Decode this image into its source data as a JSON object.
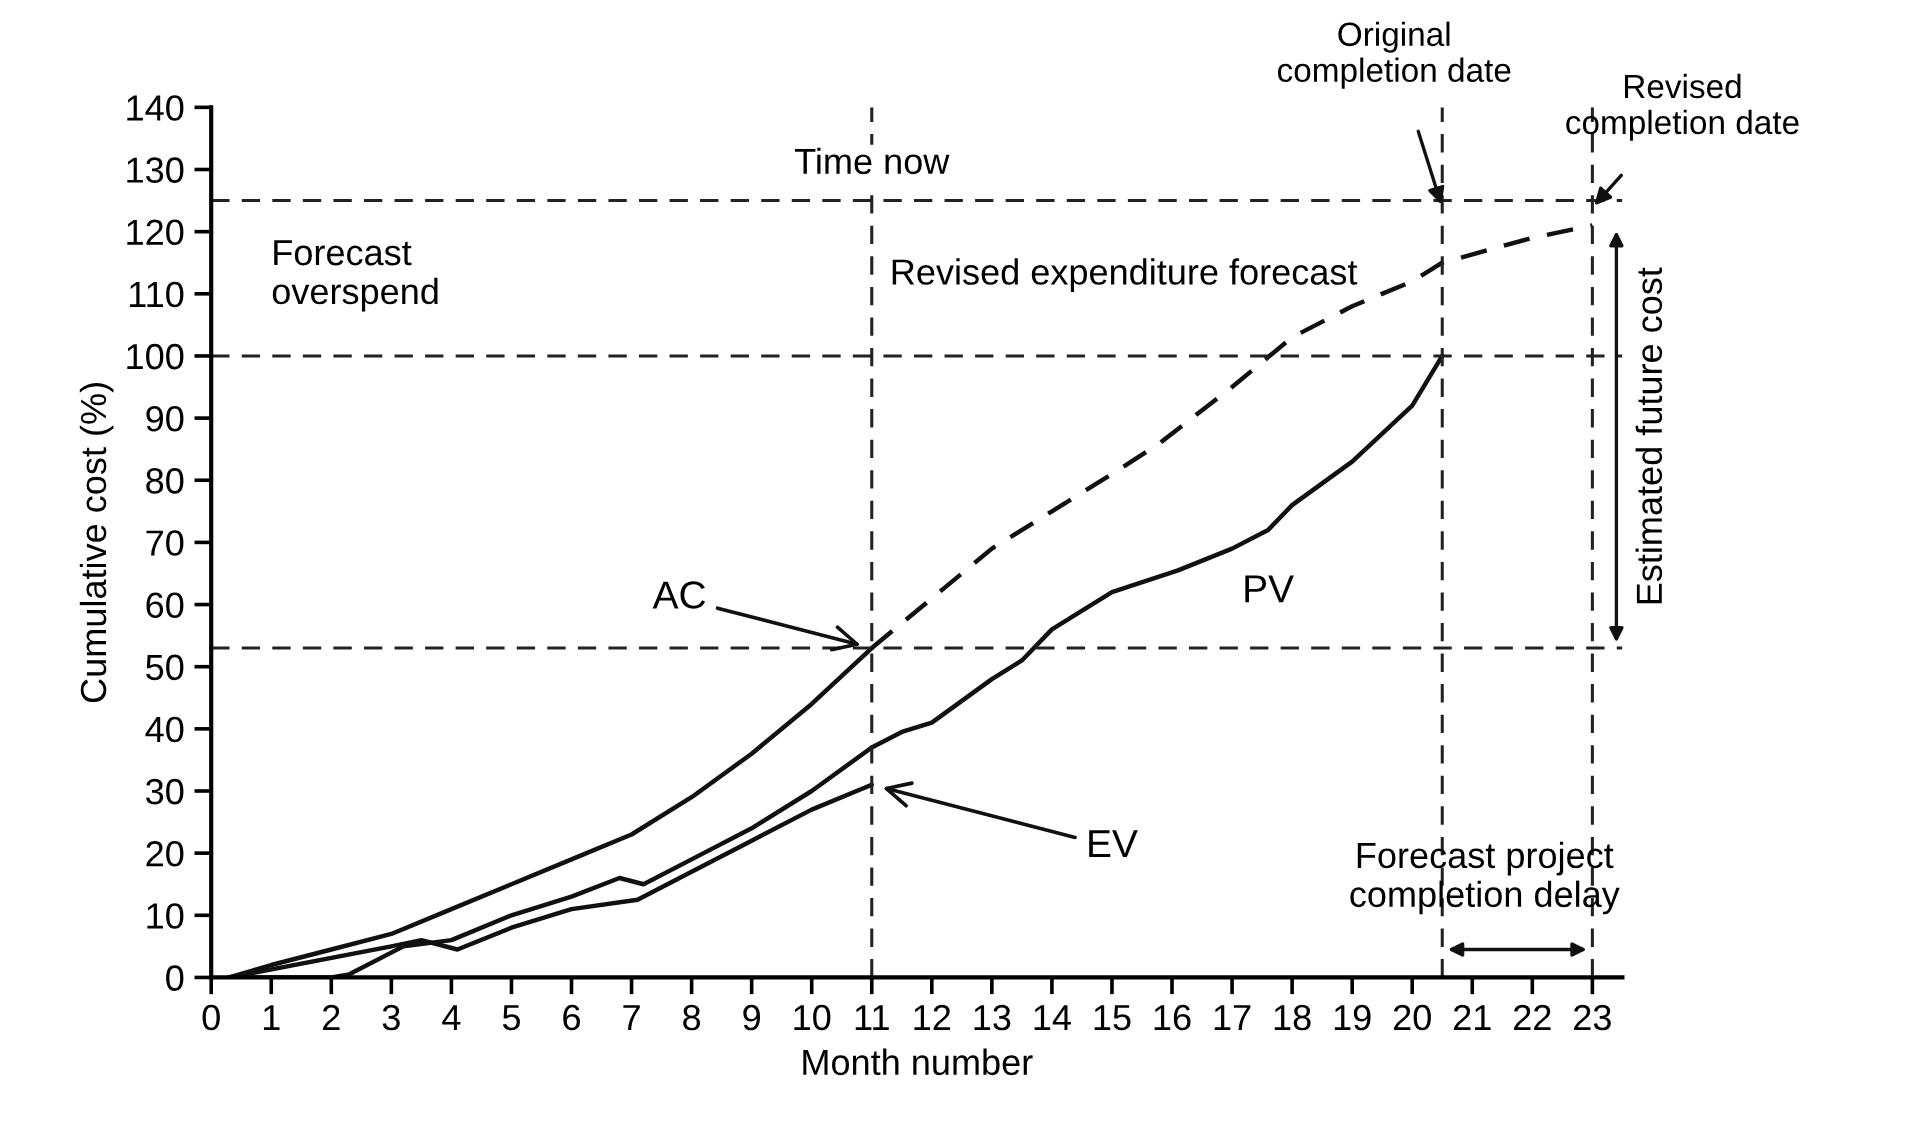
{
  "chart_data": {
    "type": "line",
    "xlabel": "Month number",
    "ylabel": "Cumulative cost (%)",
    "xlim": [
      0,
      23.5
    ],
    "xticks": [
      0,
      1,
      2,
      3,
      4,
      5,
      6,
      7,
      8,
      9,
      10,
      11,
      12,
      13,
      14,
      15,
      16,
      17,
      18,
      19,
      20,
      21,
      22,
      23
    ],
    "ylim": [
      0,
      140
    ],
    "yticks": [
      0,
      10,
      20,
      30,
      40,
      50,
      60,
      70,
      80,
      90,
      100,
      110,
      120,
      130,
      140
    ],
    "grid": false,
    "legend": false,
    "marker": "none",
    "series": [
      {
        "name": "AC",
        "color": "#111111",
        "line_style": "solid",
        "x": [
          0.3,
          1,
          2,
          3,
          4,
          5,
          6,
          7,
          8,
          9,
          10,
          11
        ],
        "values": [
          0,
          2,
          4.5,
          7,
          11,
          15,
          19,
          23,
          29,
          36,
          44,
          53
        ]
      },
      {
        "name": "Revised expenditure forecast",
        "color": "#111111",
        "line_style": "dashed",
        "x": [
          11,
          12,
          13,
          14,
          15,
          15.8,
          17,
          18,
          19,
          20,
          20.5,
          22,
          23
        ],
        "values": [
          53,
          61,
          69,
          75,
          81,
          86,
          95,
          103,
          108,
          112,
          115,
          119,
          121
        ]
      },
      {
        "name": "EV",
        "color": "#111111",
        "line_style": "solid",
        "x": [
          0.3,
          3,
          3.5,
          4.1,
          5,
          6,
          7.1,
          8,
          9,
          10,
          11
        ],
        "values": [
          0,
          5,
          6,
          4.5,
          8,
          11,
          12.5,
          17,
          22,
          27,
          31
        ]
      },
      {
        "name": "PV",
        "color": "#111111",
        "line_style": "solid",
        "x": [
          0.3,
          2,
          2.3,
          3.2,
          4,
          5,
          6,
          6.8,
          7.2,
          8,
          9,
          10,
          11,
          11.5,
          12,
          13,
          13.5,
          14,
          15,
          16.1,
          17,
          17.6,
          18,
          19,
          20,
          20.5
        ],
        "values": [
          0,
          0,
          0.5,
          5,
          6,
          10,
          13,
          16,
          15,
          19,
          24,
          30,
          37,
          39.5,
          41,
          48,
          51,
          56,
          62,
          65.5,
          69,
          72,
          76,
          83,
          92,
          100
        ]
      }
    ],
    "ref_lines": [
      {
        "axis": "x",
        "value": 11,
        "label": "Time now",
        "line_style": "dashed"
      },
      {
        "axis": "x",
        "value": 20.5,
        "label": "Original completion date",
        "line_style": "dashed"
      },
      {
        "axis": "x",
        "value": 23,
        "label": "Revised completion date",
        "line_style": "dashed"
      },
      {
        "axis": "y",
        "value": 125,
        "line_style": "dashed"
      },
      {
        "axis": "y",
        "value": 100,
        "line_style": "dashed"
      },
      {
        "axis": "y",
        "value": 53,
        "line_style": "dashed"
      }
    ],
    "annotations": [
      "Forecast overspend",
      "Estimated future cost",
      "Forecast project completion delay"
    ]
  }
}
